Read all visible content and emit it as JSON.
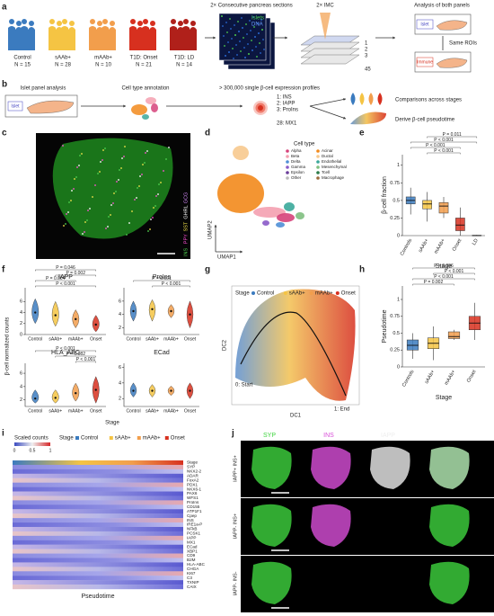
{
  "figure": {
    "a": {
      "label": "a",
      "groups": [
        {
          "name": "Control",
          "n": "N = 15"
        },
        {
          "name": "sAAb+",
          "n": "N = 28"
        },
        {
          "name": "mAAb+",
          "n": "N = 10"
        },
        {
          "name": "T1D: Onset",
          "n": "N = 21"
        },
        {
          "name": "T1D: LD",
          "n": "N = 14"
        }
      ],
      "sections": "2× Consecutive pancreas sections",
      "legend_islets": "Islets",
      "legend_dna": "DNA",
      "imc": "2× IMC",
      "stack_numbers": [
        "1",
        "2",
        "3",
        "45"
      ],
      "analysis": "Analysis of both panels",
      "islet_tag": "Islet",
      "immune_tag": "Immune",
      "same_rois": "Same ROIs"
    },
    "b": {
      "label": "b",
      "islet_panel": "Islet panel analysis",
      "islet_tag": "Islet",
      "cell_type": "Cell type annotation",
      "profiles": "> 300,000 single β-cell expression profiles",
      "markers": [
        "1: INS",
        "2: IAPP",
        "3: ProIns",
        "28: MX1"
      ],
      "comparisons": "Comparisons across stages",
      "pseudotime": "Derive β-cell pseudotime"
    },
    "c": {
      "label": "c",
      "channels": [
        "INS",
        "PPY",
        "SST",
        "GHRL",
        "GCG"
      ]
    },
    "d": {
      "label": "d",
      "legend_title": "Cell type",
      "cell_types": [
        {
          "name": "Alpha",
          "color": "#d6427a"
        },
        {
          "name": "Beta",
          "color": "#f4a0b0"
        },
        {
          "name": "Delta",
          "color": "#4f8fd6"
        },
        {
          "name": "Gamma",
          "color": "#8a5ac8"
        },
        {
          "name": "Epsilon",
          "color": "#6a3d9a"
        },
        {
          "name": "Other",
          "color": "#bbbbbb"
        },
        {
          "name": "Acinar",
          "color": "#f28a1c"
        },
        {
          "name": "Ductal",
          "color": "#f7c98e"
        },
        {
          "name": "Endothelial",
          "color": "#3aa89a"
        },
        {
          "name": "Mesenchymal",
          "color": "#7fbf7f"
        },
        {
          "name": "Tcell",
          "color": "#2c7c4a"
        },
        {
          "name": "Macrophage",
          "color": "#9c6b3c"
        }
      ],
      "x_axis": "UMAP1",
      "y_axis": "UMAP2"
    },
    "f": {
      "label": "f",
      "y_label": "β-cell normalized counts",
      "x_label": "Stage"
    },
    "g": {
      "label": "g",
      "legend_title": "Stage",
      "stages": [
        "Control",
        "sAAb+",
        "mAAb+",
        "Onset"
      ],
      "colors": [
        "#3b7bbf",
        "#f5c443",
        "#f29e4c",
        "#d7301f"
      ],
      "x_axis": "DC1",
      "y_axis": "DC2",
      "start": "0: Start",
      "end": "1: End"
    },
    "i": {
      "label": "i",
      "legend_title": "Scaled counts",
      "scale_ticks": [
        "0",
        "0.5",
        "1"
      ],
      "stage_title": "Stage",
      "stages": [
        "Control",
        "sAAb+",
        "mAAb+",
        "Onset"
      ],
      "rows": [
        "Stage",
        "SYP",
        "NKX2-2",
        "ADAR",
        "FoxA2",
        "PDX1",
        "NKX6-1",
        "PAX6",
        "WFS1",
        "ProIns",
        "CD155",
        "ATP1F1",
        "Cpep",
        "INS",
        "IRE1a-P",
        "NFkB",
        "PCSK1",
        "IAPP",
        "MX1",
        "ECad",
        "XBP1",
        "CD9",
        "B2M",
        "HLA-ABC",
        "CHGA",
        "KI67",
        "C3",
        "TXNIP",
        "CAIX"
      ],
      "x_axis": "Pseudotime"
    },
    "j": {
      "label": "j",
      "columns": [
        "SYP",
        "INS",
        "IAPP",
        "Composite"
      ],
      "rows": [
        "IAPP+ INS+",
        "IAPP- INS+",
        "IAPP- INS-"
      ]
    }
  },
  "chart_data": [
    {
      "type": "box",
      "label": "e",
      "y_label": "β-cell fraction",
      "x_label": "Stage",
      "categories": [
        "Controls",
        "sAAb+",
        "mAAb+",
        "Onset",
        "LD"
      ],
      "colors": [
        "#3b7bbf",
        "#f5c443",
        "#f29e4c",
        "#d7301f",
        "#999999"
      ],
      "median": [
        0.5,
        0.45,
        0.42,
        0.15,
        0
      ],
      "q1": [
        0.45,
        0.38,
        0.32,
        0.07,
        0
      ],
      "q3": [
        0.55,
        0.5,
        0.47,
        0.25,
        0.005
      ],
      "low": [
        0.3,
        0.2,
        0.25,
        0,
        0
      ],
      "high": [
        0.68,
        0.62,
        0.55,
        0.4,
        0.01
      ],
      "ylim": [
        0,
        1.15
      ],
      "yticks": [
        0,
        0.25,
        0.5,
        0.75,
        1
      ],
      "p_values": [
        "P = 0.011",
        "P < 0.001",
        "P < 0.001",
        "P < 0.001"
      ]
    },
    {
      "type": "box",
      "label": "h",
      "y_label": "Pseudotime",
      "x_label": "Stage",
      "categories": [
        "Controls",
        "sAAb+",
        "mAAb+",
        "Onset"
      ],
      "colors": [
        "#3b7bbf",
        "#f5c443",
        "#f29e4c",
        "#d7301f"
      ],
      "median": [
        0.32,
        0.35,
        0.45,
        0.65
      ],
      "q1": [
        0.25,
        0.27,
        0.42,
        0.55
      ],
      "q3": [
        0.4,
        0.43,
        0.52,
        0.75
      ],
      "low": [
        0.12,
        0.1,
        0.4,
        0.4
      ],
      "high": [
        0.5,
        0.6,
        0.55,
        0.95
      ],
      "ylim": [
        0,
        1.2
      ],
      "yticks": [
        0,
        0.25,
        0.5,
        0.75,
        1
      ],
      "p_values": [
        "P = 0.006",
        "P < 0.001",
        "P < 0.001",
        "P = 0.002"
      ]
    },
    {
      "type": "violin",
      "title": "IAPP",
      "categories": [
        "Control",
        "sAAb+",
        "mAAb+",
        "Onset"
      ],
      "colors": [
        "#3b7bbf",
        "#f5c443",
        "#f29e4c",
        "#d7301f"
      ],
      "median": [
        4,
        3.5,
        2.8,
        1.8
      ],
      "low": [
        2,
        1.5,
        1.2,
        0.5
      ],
      "high": [
        6.5,
        6,
        4.5,
        3.5
      ],
      "ylim": [
        0,
        8.5
      ],
      "yticks": [
        0,
        2,
        4,
        6
      ],
      "p_values": [
        "P = 0.046",
        "P = 0.002",
        "P = 0.004",
        "P < 0.001"
      ]
    },
    {
      "type": "violin",
      "title": "ProIns",
      "categories": [
        "Control",
        "sAAb+",
        "mAAb+",
        "Onset"
      ],
      "colors": [
        "#3b7bbf",
        "#f5c443",
        "#f29e4c",
        "#d7301f"
      ],
      "median": [
        4.5,
        4.8,
        4.5,
        4
      ],
      "low": [
        3,
        3,
        3.5,
        2
      ],
      "high": [
        6,
        6.2,
        5.5,
        6
      ],
      "ylim": [
        1,
        8
      ],
      "yticks": [
        2,
        4,
        6
      ],
      "p_values": [
        "P = 0.001",
        "P < 0.001"
      ]
    },
    {
      "type": "violin",
      "title": "HLA_ABC",
      "categories": [
        "Control",
        "sAAb+",
        "mAAb+",
        "Onset"
      ],
      "colors": [
        "#3b7bbf",
        "#f5c443",
        "#f29e4c",
        "#d7301f"
      ],
      "median": [
        2.2,
        2.3,
        3,
        3.5
      ],
      "low": [
        1.5,
        1.5,
        1.8,
        1.5
      ],
      "high": [
        3.5,
        3.5,
        4.5,
        5.5
      ],
      "ylim": [
        1,
        7.5
      ],
      "yticks": [
        2,
        4,
        6
      ],
      "p_values": [
        "P < 0.001",
        "P = 0.082",
        "P < 0.001"
      ]
    },
    {
      "type": "violin",
      "title": "ECad",
      "categories": [
        "Control",
        "sAAb+",
        "mAAb+",
        "Onset"
      ],
      "colors": [
        "#3b7bbf",
        "#f5c443",
        "#f29e4c",
        "#d7301f"
      ],
      "median": [
        3,
        3,
        3,
        3
      ],
      "low": [
        2.2,
        2.2,
        2.4,
        2
      ],
      "high": [
        4,
        3.8,
        3.6,
        4
      ],
      "ylim": [
        1,
        6.5
      ],
      "yticks": [
        2,
        4,
        6
      ],
      "p_values": []
    }
  ]
}
